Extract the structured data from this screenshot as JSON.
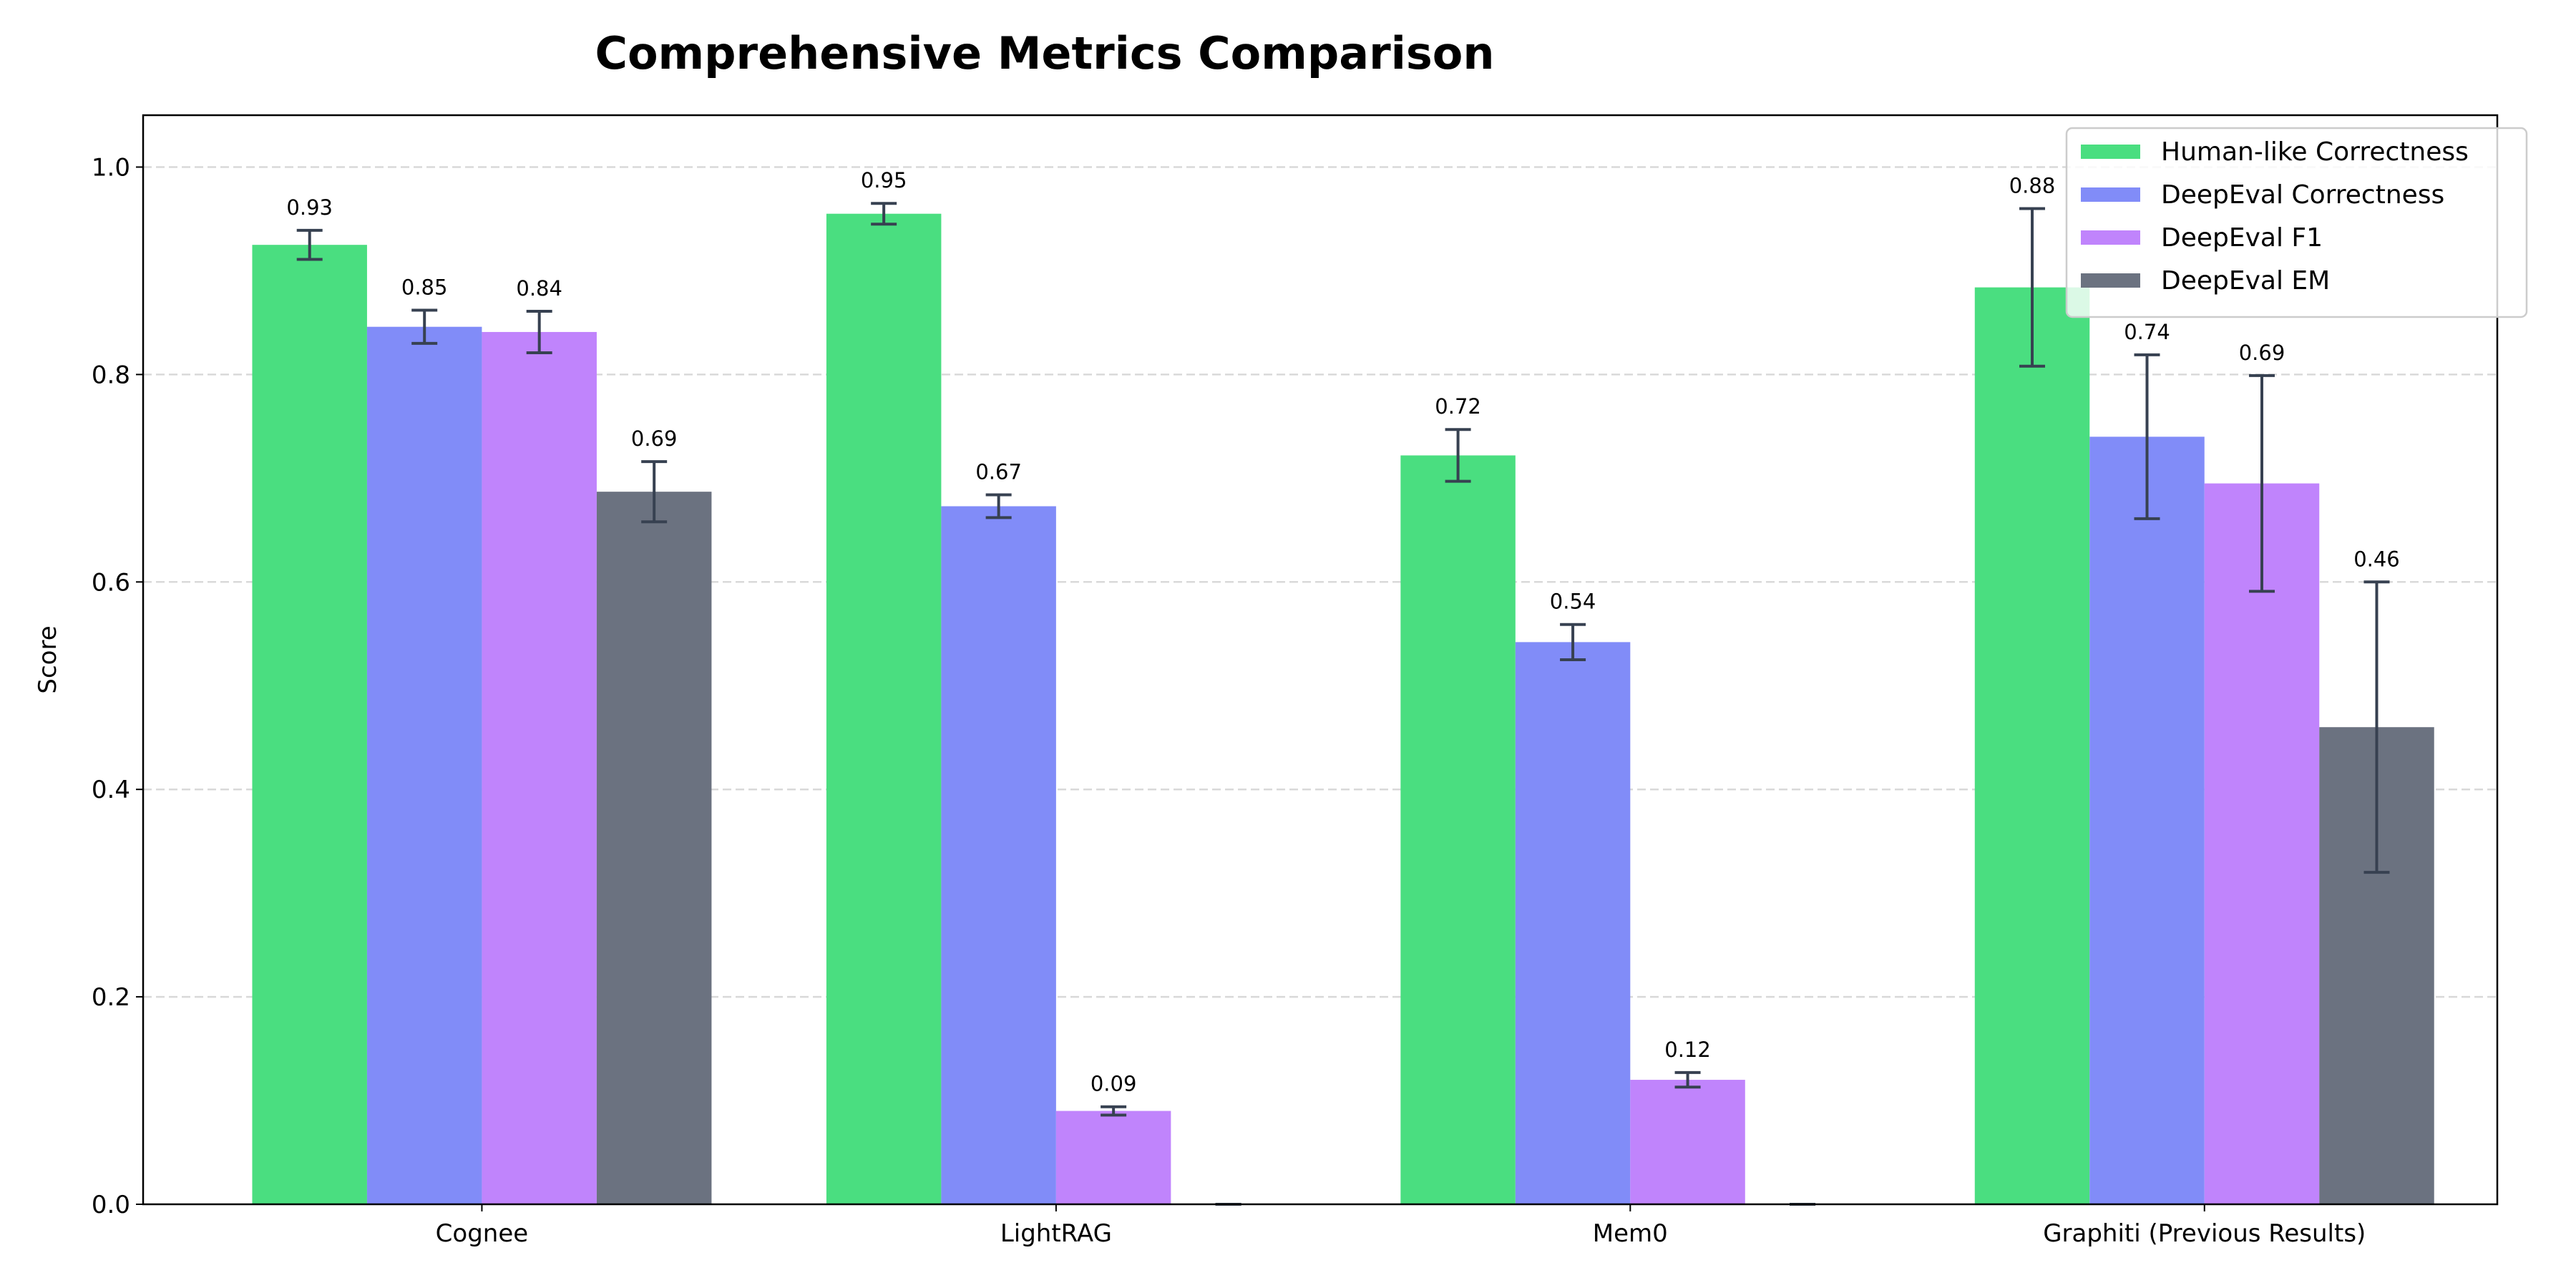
{
  "chart_data": {
    "type": "bar",
    "title": "Comprehensive Metrics Comparison",
    "xlabel": "",
    "ylabel": "Score",
    "ylim": [
      0,
      1.05
    ],
    "yticks": [
      "0.0",
      "0.2",
      "0.4",
      "0.6",
      "0.8",
      "1.0"
    ],
    "grid": "y, dashed",
    "legend_position": "top-right",
    "categories": [
      "Cognee",
      "LightRAG",
      "Mem0",
      "Graphiti (Previous Results)"
    ],
    "series": [
      {
        "name": "Human-like Correctness",
        "color": "#4ade80",
        "values": [
          0.925,
          0.955,
          0.722,
          0.884
        ],
        "errors": [
          0.014,
          0.01,
          0.025,
          0.076
        ],
        "labels": [
          "0.93",
          "0.95",
          "0.72",
          "0.88"
        ]
      },
      {
        "name": "DeepEval Correctness",
        "color": "#818cf8",
        "values": [
          0.846,
          0.673,
          0.542,
          0.74
        ],
        "errors": [
          0.016,
          0.011,
          0.017,
          0.079
        ],
        "labels": [
          "0.85",
          "0.67",
          "0.54",
          "0.74"
        ]
      },
      {
        "name": "DeepEval F1",
        "color": "#c084fc",
        "values": [
          0.841,
          0.09,
          0.12,
          0.695
        ],
        "errors": [
          0.02,
          0.004,
          0.007,
          0.104
        ],
        "labels": [
          "0.84",
          "0.09",
          "0.12",
          "0.69"
        ]
      },
      {
        "name": "DeepEval EM",
        "color": "#6b7280",
        "values": [
          0.687,
          0.0,
          0.0,
          0.46
        ],
        "errors": [
          0.029,
          0.0,
          0.0,
          0.14
        ],
        "labels": [
          "0.69",
          "",
          "",
          "0.46"
        ]
      }
    ]
  }
}
